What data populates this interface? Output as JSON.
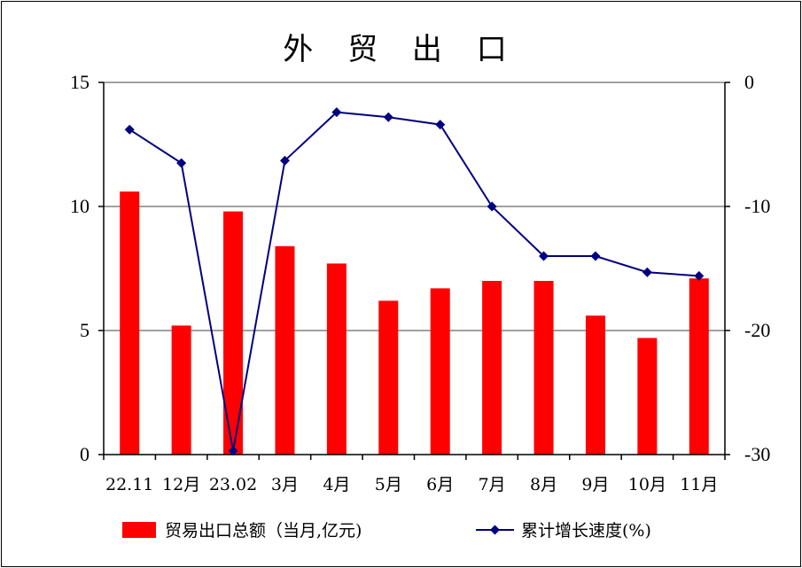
{
  "chart_data": {
    "type": "bar+line",
    "title": "外 贸 出 口",
    "categories": [
      "22.11",
      "12月",
      "23.02",
      "3月",
      "4月",
      "5月",
      "6月",
      "7月",
      "8月",
      "9月",
      "10月",
      "11月"
    ],
    "series": [
      {
        "name": "贸易出口总额（当月,亿元)",
        "type": "bar",
        "axis": "left",
        "color": "#ff0000",
        "values": [
          10.6,
          5.2,
          9.8,
          8.4,
          7.7,
          6.2,
          6.7,
          7.0,
          7.0,
          5.6,
          4.7,
          7.1
        ]
      },
      {
        "name": "累计增长速度(%)",
        "type": "line",
        "axis": "right",
        "color": "#000080",
        "marker": "diamond",
        "values": [
          -3.8,
          -6.5,
          -29.7,
          -6.3,
          -2.4,
          -2.8,
          -3.4,
          -10.0,
          -14.0,
          -14.0,
          -15.3,
          -15.6
        ]
      }
    ],
    "y_left": {
      "min": 0,
      "max": 15,
      "ticks": [
        0,
        5,
        10,
        15
      ]
    },
    "y_right": {
      "min": -30,
      "max": 0,
      "ticks": [
        -30,
        -20,
        -10,
        0
      ]
    },
    "grid": "horizontal",
    "legend_position": "bottom"
  }
}
